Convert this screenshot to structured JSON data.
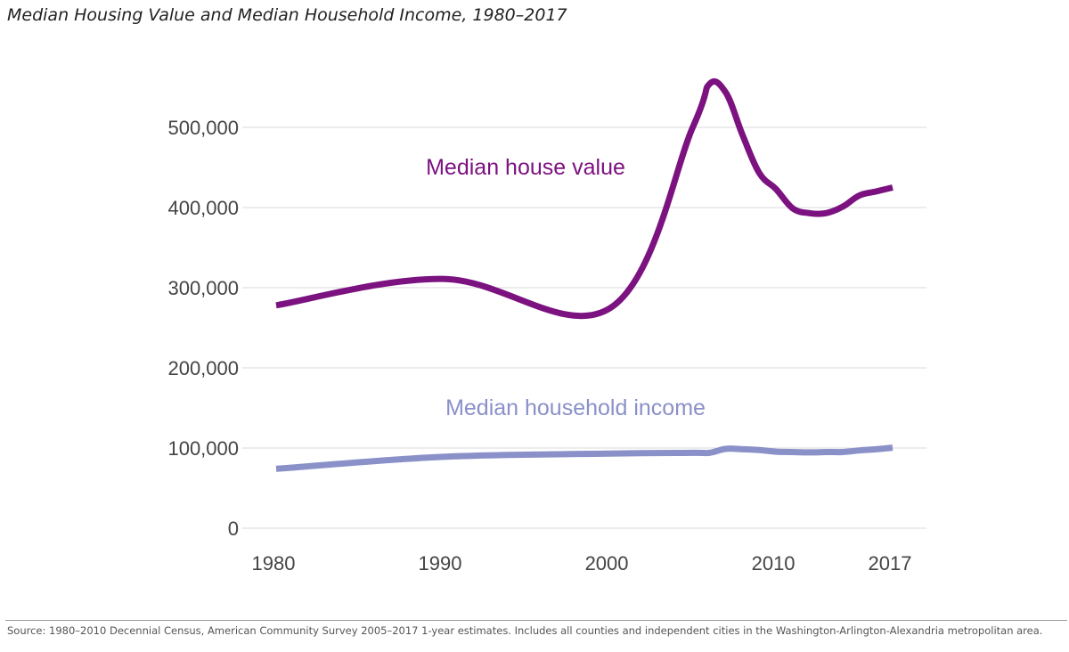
{
  "title": "Median Housing Value and Median Household Income, 1980–2017",
  "source_note": "Source: 1980–2010 Decennial Census, American Community Survey 2005–2017 1-year estimates.  Includes all counties and independent cities in the Washington-Arlington-Alexandria metropolitan area.",
  "chart_data": {
    "type": "line",
    "title": "Median Housing Value and Median Household Income, 1980–2017",
    "xlabel": "",
    "ylabel": "",
    "xlim": [
      1980,
      2017
    ],
    "ylim": [
      0,
      550000
    ],
    "grid": true,
    "x_ticks": [
      1980,
      1990,
      2000,
      2010,
      2017
    ],
    "x_tick_labels": [
      "1980",
      "1990",
      "2000",
      "2010",
      "2017"
    ],
    "y_ticks": [
      0,
      100000,
      200000,
      300000,
      400000,
      500000
    ],
    "y_tick_labels": [
      "0",
      "100,000",
      "200,000",
      "300,000",
      "400,000",
      "500,000"
    ],
    "series": [
      {
        "name": "Median house value",
        "color": "#7b1280",
        "points": [
          {
            "x": 1980,
            "y": 278000
          },
          {
            "x": 1990,
            "y": 311000
          },
          {
            "x": 2000,
            "y": 274000
          },
          {
            "x": 2005,
            "y": 500000
          },
          {
            "x": 2006,
            "y": 554000
          },
          {
            "x": 2007,
            "y": 543000
          },
          {
            "x": 2008,
            "y": 490000
          },
          {
            "x": 2009,
            "y": 443000
          },
          {
            "x": 2010,
            "y": 423000
          },
          {
            "x": 2011,
            "y": 399000
          },
          {
            "x": 2012,
            "y": 393000
          },
          {
            "x": 2013,
            "y": 393000
          },
          {
            "x": 2014,
            "y": 401000
          },
          {
            "x": 2015,
            "y": 415000
          },
          {
            "x": 2016,
            "y": 420000
          },
          {
            "x": 2017,
            "y": 425000
          }
        ]
      },
      {
        "name": "Median household income",
        "color": "#8a90c8",
        "points": [
          {
            "x": 1980,
            "y": 74000
          },
          {
            "x": 1990,
            "y": 89000
          },
          {
            "x": 2000,
            "y": 93000
          },
          {
            "x": 2005,
            "y": 94000
          },
          {
            "x": 2006,
            "y": 94000
          },
          {
            "x": 2007,
            "y": 99000
          },
          {
            "x": 2008,
            "y": 98500
          },
          {
            "x": 2009,
            "y": 97500
          },
          {
            "x": 2010,
            "y": 95500
          },
          {
            "x": 2011,
            "y": 95000
          },
          {
            "x": 2012,
            "y": 94500
          },
          {
            "x": 2013,
            "y": 95000
          },
          {
            "x": 2014,
            "y": 95000
          },
          {
            "x": 2015,
            "y": 97000
          },
          {
            "x": 2016,
            "y": 98500
          },
          {
            "x": 2017,
            "y": 100500
          }
        ]
      }
    ]
  }
}
